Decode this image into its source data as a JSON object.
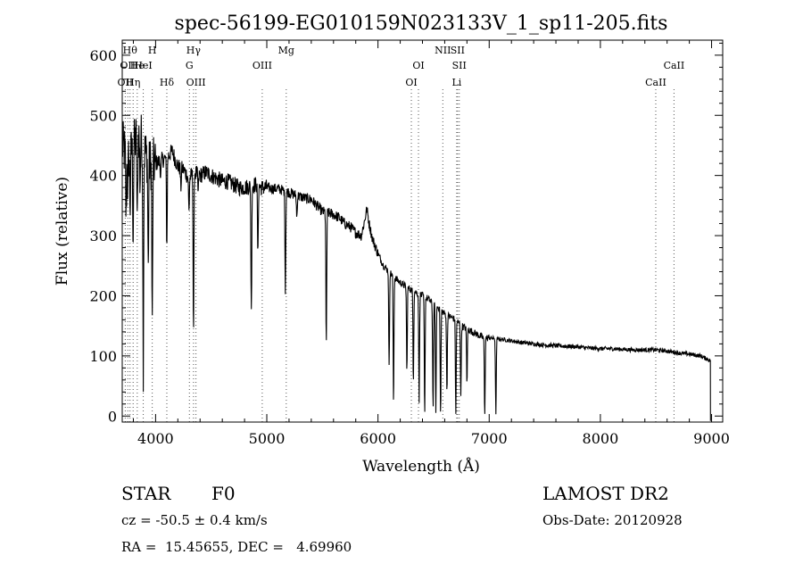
{
  "chart_data": {
    "type": "line",
    "title": "spec-56199-EG010159N023133V_1_sp11-205.fits",
    "xlabel": "Wavelength (Å)",
    "ylabel": "Flux (relative)",
    "xlim": [
      3700,
      9100
    ],
    "ylim": [
      -10,
      625
    ],
    "xticks": [
      4000,
      5000,
      6000,
      7000,
      8000,
      9000
    ],
    "yticks": [
      0,
      100,
      200,
      300,
      400,
      500,
      600
    ],
    "grid": false,
    "line_color": "#000000",
    "marker_color": "#555555",
    "continuum": {
      "x": [
        3700,
        3740,
        3780,
        3820,
        3860,
        3900,
        3950,
        4000,
        4050,
        4100,
        4150,
        4200,
        4250,
        4300,
        4350,
        4400,
        4450,
        4500,
        4550,
        4600,
        4650,
        4700,
        4750,
        4800,
        4850,
        4900,
        4950,
        5000,
        5050,
        5100,
        5150,
        5200,
        5250,
        5300,
        5350,
        5400,
        5450,
        5500,
        5550,
        5600,
        5650,
        5700,
        5750,
        5800,
        5850,
        5880,
        5900,
        5920,
        5950,
        6000,
        6050,
        6100,
        6150,
        6200,
        6250,
        6300,
        6350,
        6400,
        6450,
        6500,
        6550,
        6600,
        6650,
        6700,
        6750,
        6800,
        6850,
        6900,
        6950,
        7000,
        7100,
        7200,
        7300,
        7400,
        7500,
        7600,
        7700,
        7800,
        7900,
        8000,
        8100,
        8200,
        8300,
        8400,
        8500,
        8600,
        8700,
        8800,
        8900,
        8990
      ],
      "y": [
        450,
        430,
        440,
        460,
        470,
        440,
        420,
        420,
        425,
        430,
        440,
        415,
        410,
        395,
        405,
        400,
        405,
        400,
        395,
        390,
        390,
        385,
        380,
        380,
        382,
        385,
        380,
        380,
        378,
        378,
        375,
        372,
        368,
        365,
        362,
        360,
        350,
        340,
        338,
        335,
        330,
        320,
        315,
        305,
        300,
        325,
        345,
        320,
        295,
        270,
        250,
        240,
        230,
        222,
        215,
        210,
        205,
        200,
        195,
        185,
        180,
        170,
        165,
        160,
        150,
        145,
        140,
        135,
        130,
        130,
        128,
        125,
        122,
        120,
        118,
        117,
        116,
        115,
        113,
        112,
        112,
        111,
        110,
        110,
        110,
        108,
        105,
        103,
        100,
        92
      ]
    },
    "absorption_lines": [
      {
        "x": 3735,
        "y": 330
      },
      {
        "x": 3750,
        "y": 380
      },
      {
        "x": 3771,
        "y": 350
      },
      {
        "x": 3798,
        "y": 300
      },
      {
        "x": 3835,
        "y": 310
      },
      {
        "x": 3860,
        "y": 390
      },
      {
        "x": 3889,
        "y": 85
      },
      {
        "x": 3934,
        "y": 240
      },
      {
        "x": 3970,
        "y": 140
      },
      {
        "x": 4046,
        "y": 400
      },
      {
        "x": 4101,
        "y": 280
      },
      {
        "x": 4227,
        "y": 380
      },
      {
        "x": 4300,
        "y": 340
      },
      {
        "x": 4341,
        "y": 140
      },
      {
        "x": 4383,
        "y": 370
      },
      {
        "x": 4861,
        "y": 170
      },
      {
        "x": 4920,
        "y": 265
      },
      {
        "x": 5167,
        "y": 205
      },
      {
        "x": 5270,
        "y": 330
      },
      {
        "x": 5535,
        "y": 115
      },
      {
        "x": 6100,
        "y": 80
      },
      {
        "x": 6140,
        "y": 20
      },
      {
        "x": 6260,
        "y": 70
      },
      {
        "x": 6318,
        "y": 60
      },
      {
        "x": 6370,
        "y": 25
      },
      {
        "x": 6420,
        "y": 5
      },
      {
        "x": 6495,
        "y": 15
      },
      {
        "x": 6520,
        "y": 0
      },
      {
        "x": 6563,
        "y": 0
      },
      {
        "x": 6620,
        "y": 40
      },
      {
        "x": 6700,
        "y": 5
      },
      {
        "x": 6745,
        "y": 35
      },
      {
        "x": 6800,
        "y": 55
      },
      {
        "x": 6960,
        "y": 0
      },
      {
        "x": 7060,
        "y": 0
      }
    ],
    "markers": [
      {
        "x": 3727,
        "label": "OII",
        "row": 2
      },
      {
        "x": 3750,
        "label": "OII",
        "row": 1
      },
      {
        "x": 3770,
        "label": "Hθ",
        "row": 0
      },
      {
        "x": 3798,
        "label": "Hη",
        "row": 2
      },
      {
        "x": 3835,
        "label": "He",
        "row": 1
      },
      {
        "x": 3889,
        "label": "HeI",
        "row": 1
      },
      {
        "x": 3970,
        "label": "H",
        "row": 0
      },
      {
        "x": 4101,
        "label": "Hδ",
        "row": 2
      },
      {
        "x": 4304,
        "label": "G",
        "row": 1
      },
      {
        "x": 4341,
        "label": "Hγ",
        "row": 0
      },
      {
        "x": 4363,
        "label": "OIII",
        "row": 2
      },
      {
        "x": 4959,
        "label": "OIII",
        "row": 1
      },
      {
        "x": 5175,
        "label": "Mg",
        "row": 0
      },
      {
        "x": 6300,
        "label": "OI",
        "row": 2
      },
      {
        "x": 6364,
        "label": "OI",
        "row": 1
      },
      {
        "x": 6583,
        "label": "NII",
        "row": 0
      },
      {
        "x": 6708,
        "label": "Li",
        "row": 2
      },
      {
        "x": 6716,
        "label": "SII",
        "row": 0
      },
      {
        "x": 6731,
        "label": "SII",
        "row": 1
      },
      {
        "x": 8498,
        "label": "CaII",
        "row": 2
      },
      {
        "x": 8662,
        "label": "CaII",
        "row": 1
      }
    ]
  },
  "info": {
    "object_class": "STAR",
    "subclass": "F0",
    "cz": "cz = -50.5 ± 0.4 km/s",
    "coords": "RA =  15.45655, DEC =   4.69960",
    "survey": "LAMOST DR2",
    "obs_date": "Obs-Date: 20120928"
  }
}
